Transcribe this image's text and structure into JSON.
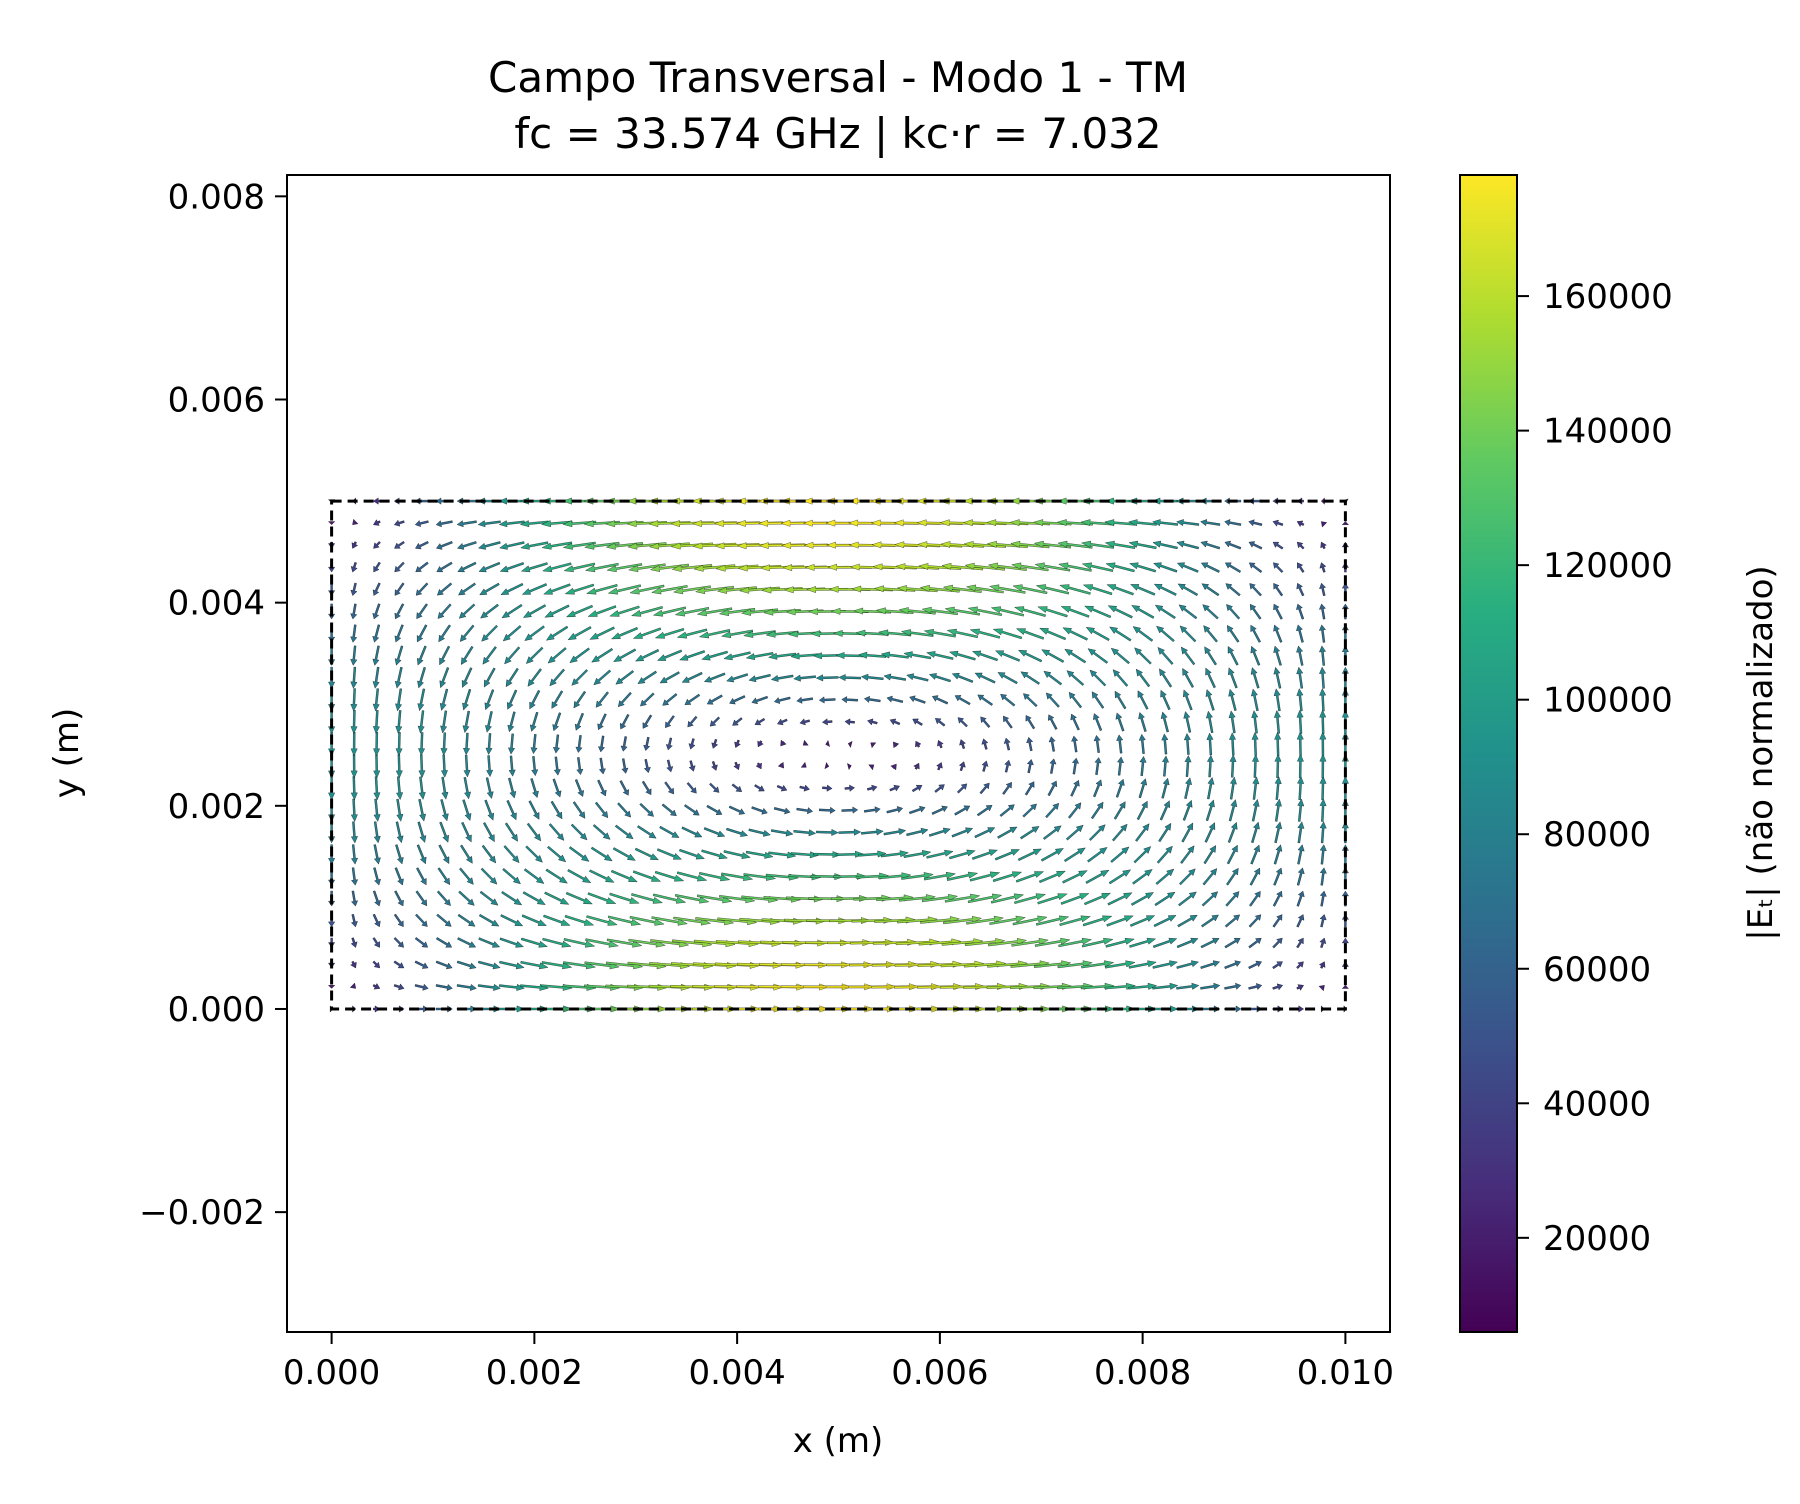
{
  "chart_data": {
    "type": "quiver",
    "title_line1": "Campo Transversal - Modo 1 - TM",
    "title_line2": "fc = 33.574 GHz | kc·r = 7.032",
    "xlabel": "x (m)",
    "ylabel": "y (m)",
    "xlim": [
      -0.00044,
      0.01044
    ],
    "ylim": [
      -0.00318,
      0.00821
    ],
    "xticks": [
      0.0,
      0.002,
      0.004,
      0.006,
      0.008,
      0.01
    ],
    "xtick_labels": [
      "0.000",
      "0.002",
      "0.004",
      "0.006",
      "0.008",
      "0.010"
    ],
    "yticks": [
      -0.002,
      0.0,
      0.002,
      0.004,
      0.006,
      0.008
    ],
    "ytick_labels": [
      "−0.002",
      "0.000",
      "0.002",
      "0.004",
      "0.006",
      "0.008"
    ],
    "guide_boundary": {
      "x": [
        0.0,
        0.01
      ],
      "y": [
        0.0,
        0.005
      ],
      "style": "dashed",
      "color": "#000000"
    },
    "field": {
      "description_values": "quiver over rectangular guide a=0.010 m, b=0.005 m; single clockwise vortex centered at (0.005, 0.0025)",
      "grid_nx": 46,
      "grid_ny": 24,
      "vector_field": "Et",
      "magnitude_min": 6000,
      "magnitude_max": 178000
    },
    "colorbar": {
      "label": "|Eₜ| (não normalizado)",
      "colormap": "viridis",
      "range": [
        6000,
        178000
      ],
      "ticks": [
        20000,
        40000,
        60000,
        80000,
        100000,
        120000,
        140000,
        160000
      ],
      "tick_labels": [
        "20000",
        "40000",
        "60000",
        "80000",
        "100000",
        "120000",
        "140000",
        "160000"
      ]
    }
  }
}
